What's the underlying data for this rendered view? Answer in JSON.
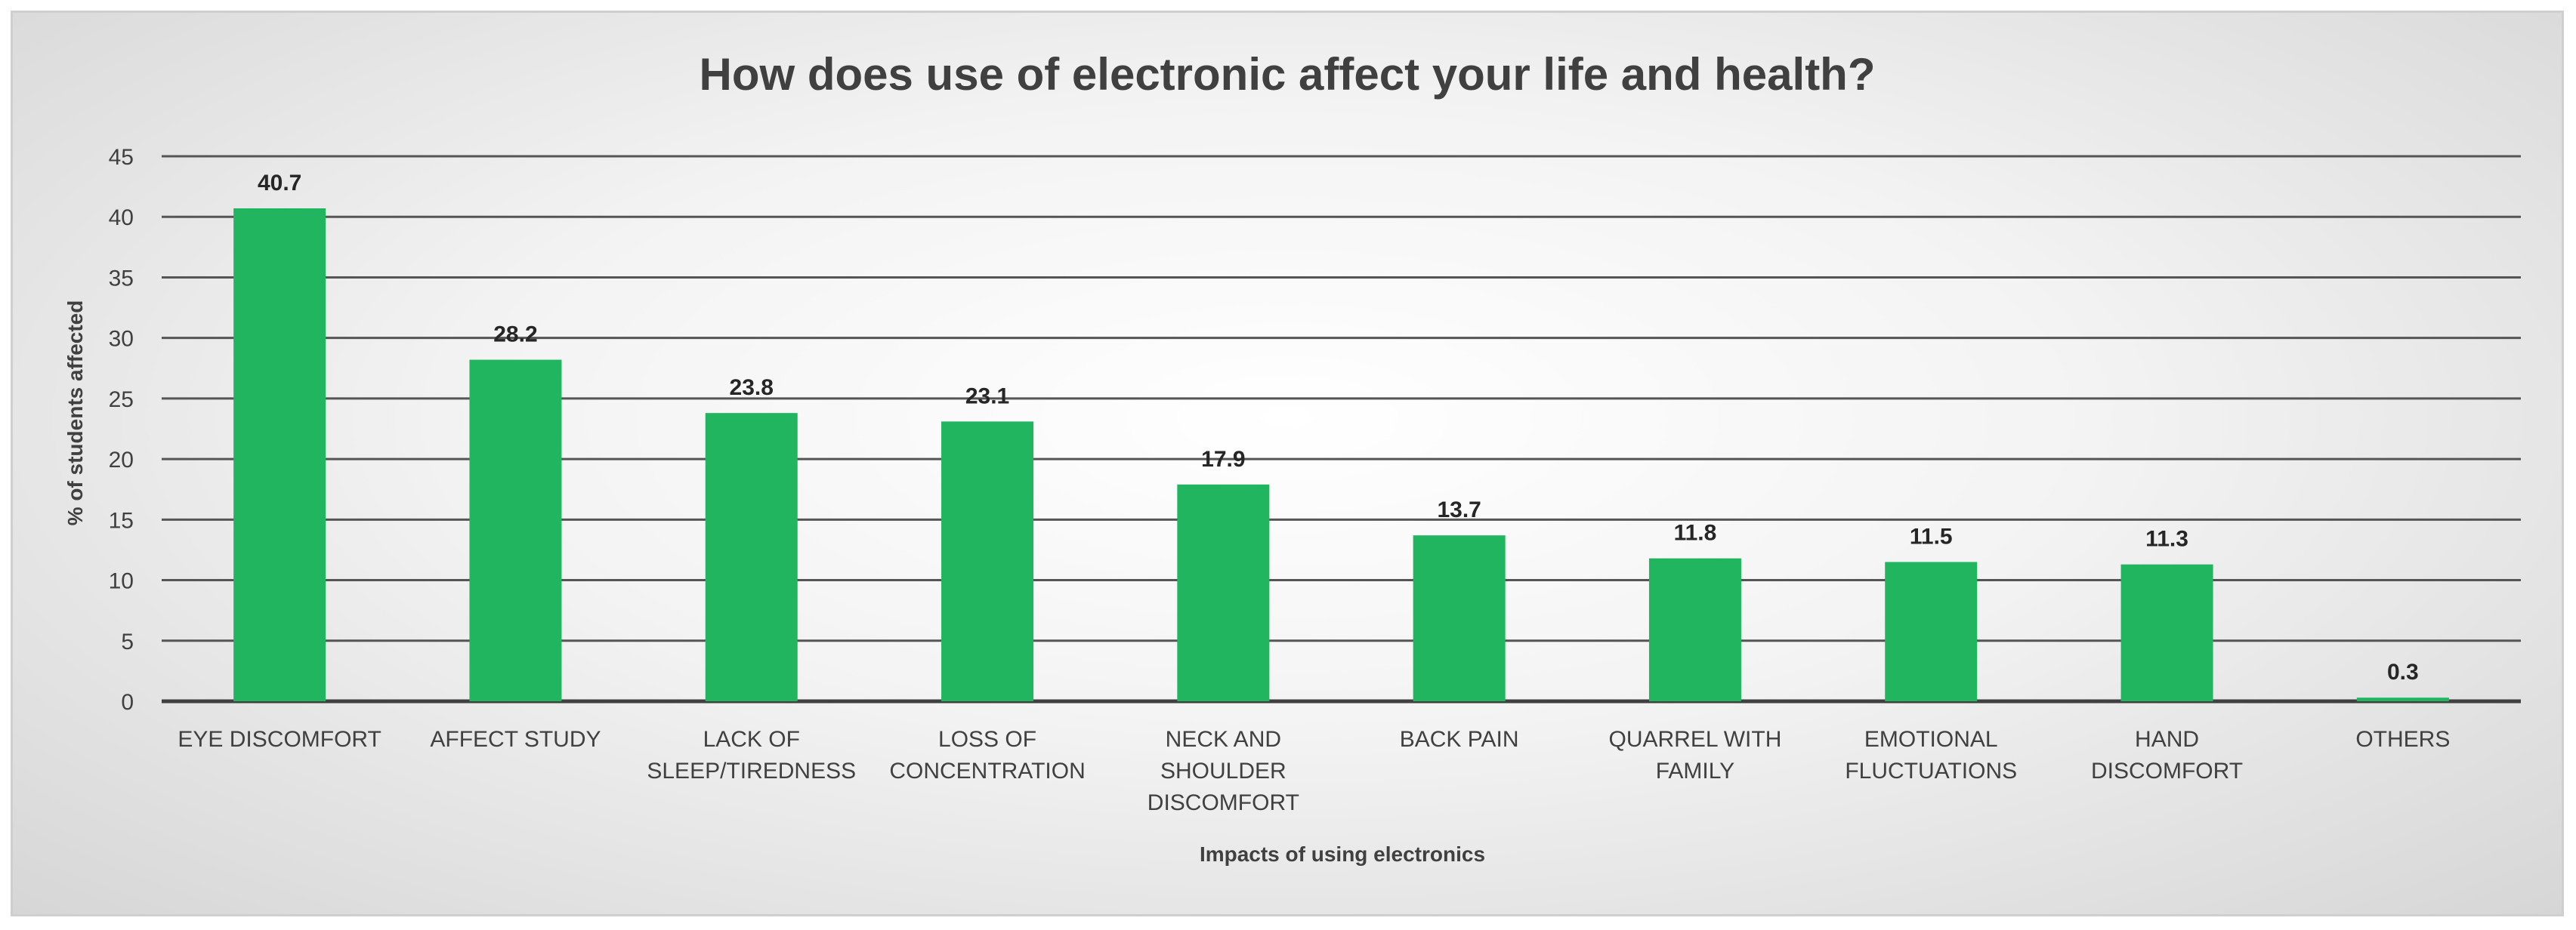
{
  "chart_data": {
    "type": "bar",
    "title": "How does use of electronic affect your life and health?",
    "xlabel": "Impacts of using electronics",
    "ylabel": "% of students affected",
    "ylim": [
      0,
      45
    ],
    "yticks": [
      0,
      5,
      10,
      15,
      20,
      25,
      30,
      35,
      40,
      45
    ],
    "grid": true,
    "categories": [
      [
        "EYE DISCOMFORT"
      ],
      [
        "AFFECT STUDY"
      ],
      [
        "LACK OF",
        "SLEEP/TIREDNESS"
      ],
      [
        "LOSS OF",
        "CONCENTRATION"
      ],
      [
        "NECK AND",
        "SHOULDER",
        "DISCOMFORT"
      ],
      [
        "BACK PAIN"
      ],
      [
        "QUARREL WITH",
        "FAMILY"
      ],
      [
        "EMOTIONAL",
        "FLUCTUATIONS"
      ],
      [
        "HAND",
        "DISCOMFORT"
      ],
      [
        "OTHERS"
      ]
    ],
    "values": [
      40.7,
      28.2,
      23.8,
      23.1,
      17.9,
      13.7,
      11.8,
      11.5,
      11.3,
      0.3
    ],
    "bar_color": "#22b55f",
    "data_labels": [
      "40.7",
      "28.2",
      "23.8",
      "23.1",
      "17.9",
      "13.7",
      "11.8",
      "11.5",
      "11.3",
      "0.3"
    ]
  }
}
